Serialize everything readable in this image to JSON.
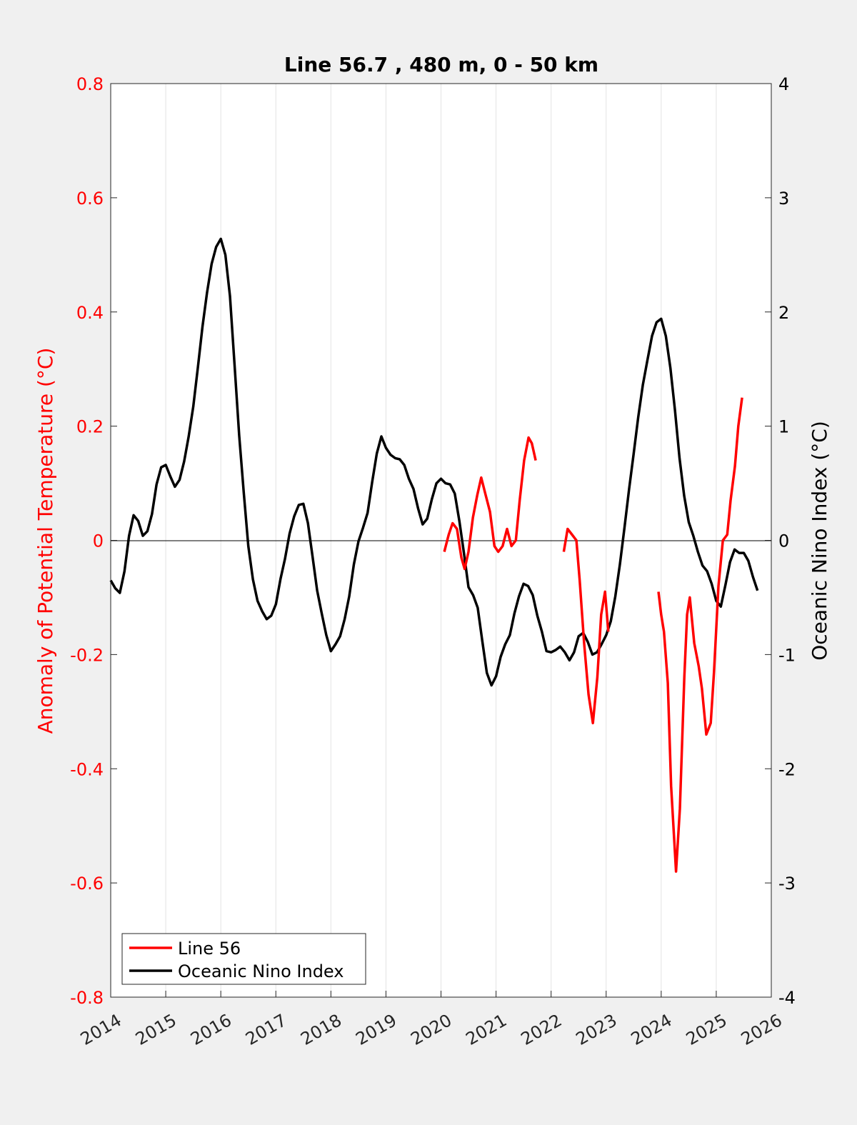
{
  "chart_data": {
    "type": "line",
    "title": "Line 56.7 , 480 m, 0 - 50 km",
    "ylabel_left": "Anomaly of Potential Temperature (°C)",
    "ylabel_right": "Oceanic Nino Index (°C)",
    "xlabel": "",
    "xlim": [
      2014,
      2026
    ],
    "ylim_left": [
      -0.8,
      0.8
    ],
    "ylim_right": [
      -4,
      4
    ],
    "x_ticks": [
      "2014",
      "2015",
      "2016",
      "2017",
      "2018",
      "2019",
      "2020",
      "2021",
      "2022",
      "2023",
      "2024",
      "2025",
      "2026"
    ],
    "y_ticks_left": [
      "0.8",
      "0.6",
      "0.4",
      "0.2",
      "0",
      "-0.2",
      "-0.4",
      "-0.6",
      "-0.8"
    ],
    "y_ticks_right": [
      "4",
      "3",
      "2",
      "1",
      "0",
      "-1",
      "-2",
      "-3",
      "-4"
    ],
    "grid": "vertical",
    "legend_position": "bottom-left",
    "colors": {
      "line56": "#ff0000",
      "oni": "#000000",
      "left_axis": "#ff0000"
    },
    "series": [
      {
        "name": "Line 56",
        "axis": "left",
        "segments": [
          {
            "x": [
              2020.06,
              2020.14,
              2020.21,
              2020.29,
              2020.37,
              2020.43,
              2020.5,
              2020.58,
              2020.66,
              2020.73,
              2020.81,
              2020.89,
              2020.97,
              2021.04,
              2021.12,
              2021.2,
              2021.28,
              2021.36,
              2021.43,
              2021.51,
              2021.59,
              2021.65,
              2021.72
            ],
            "y": [
              -0.02,
              0.01,
              0.03,
              0.02,
              -0.03,
              -0.05,
              -0.02,
              0.04,
              0.08,
              0.11,
              0.08,
              0.05,
              -0.01,
              -0.02,
              -0.01,
              0.02,
              -0.01,
              0.0,
              0.07,
              0.14,
              0.18,
              0.17,
              0.14
            ]
          },
          {
            "x": [
              2022.23,
              2022.3,
              2022.38,
              2022.46,
              2022.52,
              2022.6,
              2022.68,
              2022.76,
              2022.84,
              2022.91,
              2022.98,
              2023.04
            ],
            "y": [
              -0.02,
              0.02,
              0.01,
              0.0,
              -0.07,
              -0.18,
              -0.27,
              -0.32,
              -0.24,
              -0.13,
              -0.09,
              -0.16
            ]
          },
          {
            "x": [
              2023.95,
              2024.0,
              2024.05,
              2024.12,
              2024.18,
              2024.27,
              2024.34,
              2024.42,
              2024.47,
              2024.52,
              2024.6,
              2024.68,
              2024.74,
              2024.82,
              2024.9,
              2024.96,
              2025.04,
              2025.12,
              2025.2,
              2025.26,
              2025.34,
              2025.4,
              2025.47
            ],
            "y": [
              -0.09,
              -0.13,
              -0.16,
              -0.25,
              -0.43,
              -0.58,
              -0.47,
              -0.24,
              -0.13,
              -0.1,
              -0.18,
              -0.22,
              -0.26,
              -0.34,
              -0.32,
              -0.23,
              -0.08,
              0.0,
              0.01,
              0.07,
              0.13,
              0.2,
              0.25
            ]
          }
        ]
      },
      {
        "name": "Oceanic Nino Index",
        "axis": "right",
        "x_start": 2014.0,
        "x_step_months": 1,
        "values": [
          -0.35,
          -0.42,
          -0.46,
          -0.27,
          0.04,
          0.22,
          0.17,
          0.04,
          0.08,
          0.23,
          0.49,
          0.64,
          0.66,
          0.56,
          0.47,
          0.53,
          0.69,
          0.91,
          1.17,
          1.51,
          1.87,
          2.17,
          2.42,
          2.57,
          2.64,
          2.5,
          2.14,
          1.54,
          0.92,
          0.42,
          -0.05,
          -0.34,
          -0.53,
          -0.62,
          -0.69,
          -0.66,
          -0.56,
          -0.34,
          -0.16,
          0.06,
          0.21,
          0.31,
          0.32,
          0.15,
          -0.14,
          -0.44,
          -0.64,
          -0.83,
          -0.97,
          -0.91,
          -0.84,
          -0.69,
          -0.49,
          -0.21,
          -0.01,
          0.11,
          0.24,
          0.51,
          0.76,
          0.91,
          0.81,
          0.75,
          0.72,
          0.71,
          0.66,
          0.54,
          0.45,
          0.28,
          0.14,
          0.19,
          0.36,
          0.5,
          0.54,
          0.5,
          0.49,
          0.41,
          0.17,
          -0.11,
          -0.41,
          -0.48,
          -0.59,
          -0.88,
          -1.16,
          -1.27,
          -1.19,
          -1.02,
          -0.91,
          -0.83,
          -0.64,
          -0.49,
          -0.38,
          -0.4,
          -0.48,
          -0.66,
          -0.8,
          -0.97,
          -0.98,
          -0.96,
          -0.93,
          -0.98,
          -1.05,
          -0.98,
          -0.84,
          -0.81,
          -0.89,
          -1.0,
          -0.98,
          -0.91,
          -0.83,
          -0.71,
          -0.49,
          -0.21,
          0.11,
          0.45,
          0.76,
          1.08,
          1.36,
          1.58,
          1.79,
          1.91,
          1.94,
          1.79,
          1.51,
          1.14,
          0.72,
          0.39,
          0.16,
          0.04,
          -0.1,
          -0.22,
          -0.27,
          -0.38,
          -0.53,
          -0.58,
          -0.39,
          -0.19,
          -0.08,
          -0.11,
          -0.11,
          -0.18,
          -0.32,
          -0.44
        ]
      }
    ]
  }
}
